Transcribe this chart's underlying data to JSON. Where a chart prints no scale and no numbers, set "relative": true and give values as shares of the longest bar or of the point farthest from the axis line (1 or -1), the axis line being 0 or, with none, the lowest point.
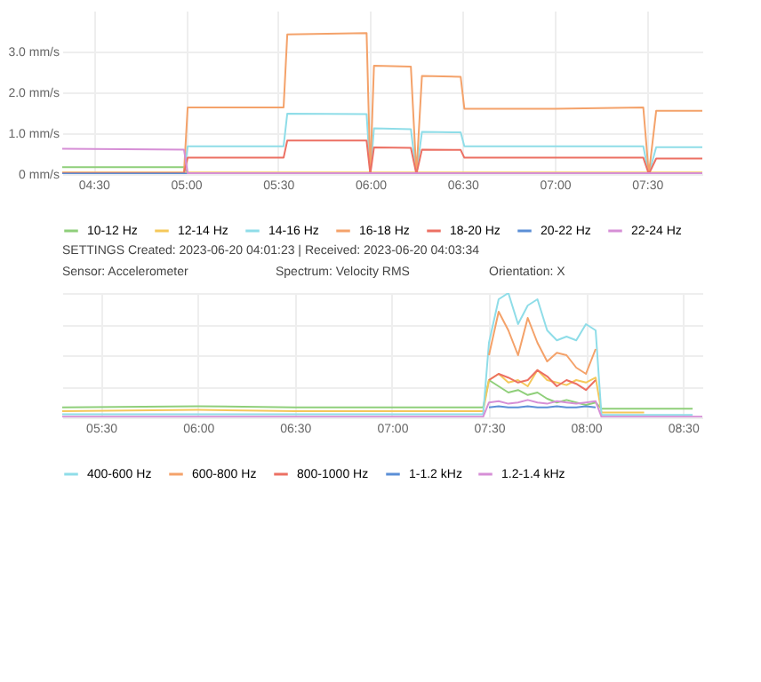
{
  "chart_data": [
    {
      "type": "line",
      "xlabel": null,
      "ylabel": null,
      "x": [
        4.33,
        4.99,
        5.01,
        5.53,
        5.55,
        5.98,
        6.0,
        6.02,
        6.22,
        6.25,
        6.28,
        6.49,
        6.51,
        7.0,
        7.48,
        7.51,
        7.55,
        7.8
      ],
      "xlim": [
        4.33,
        7.8
      ],
      "xticks": [
        {
          "value": 4.5,
          "label": "04:30"
        },
        {
          "value": 5.0,
          "label": "05:00"
        },
        {
          "value": 5.5,
          "label": "05:30"
        },
        {
          "value": 6.0,
          "label": "06:00"
        },
        {
          "value": 6.5,
          "label": "06:30"
        },
        {
          "value": 7.0,
          "label": "07:00"
        },
        {
          "value": 7.5,
          "label": "07:30"
        }
      ],
      "ylim": [
        0,
        4
      ],
      "yticks": [
        {
          "value": 0,
          "label": "0 mm/s"
        },
        {
          "value": 1,
          "label": "1.0 mm/s"
        },
        {
          "value": 2,
          "label": "2.0 mm/s"
        },
        {
          "value": 3,
          "label": "3.0 mm/s"
        }
      ],
      "grid": true,
      "legend": "bottom",
      "series": [
        {
          "name": "10-12 Hz",
          "color": "#8fcf7a",
          "values": [
            0.17,
            0.17,
            0.03,
            null,
            null,
            null,
            null,
            null,
            null,
            null,
            null,
            null,
            null,
            null,
            null,
            null,
            null,
            null
          ]
        },
        {
          "name": "12-14 Hz",
          "color": "#f5c85a",
          "values": [
            0.04,
            0.04,
            0.04,
            0.04,
            0.04,
            0.04,
            0.04,
            0.04,
            0.04,
            0.04,
            0.04,
            0.04,
            0.04,
            0.04,
            0.04,
            0.04,
            0.04,
            0.04
          ]
        },
        {
          "name": "14-16 Hz",
          "color": "#8fdde8",
          "values": [
            0.02,
            0.02,
            0.68,
            0.68,
            1.48,
            1.47,
            0,
            1.12,
            1.1,
            0,
            1.03,
            1.02,
            0.68,
            0.68,
            0.68,
            0,
            0.66,
            0.66
          ]
        },
        {
          "name": "16-18 Hz",
          "color": "#f4a26a",
          "values": [
            0.03,
            0.03,
            1.63,
            1.63,
            3.42,
            3.45,
            0,
            2.65,
            2.63,
            0,
            2.4,
            2.38,
            1.6,
            1.6,
            1.63,
            0,
            1.55,
            1.55
          ]
        },
        {
          "name": "18-20 Hz",
          "color": "#ec7063",
          "values": [
            0.02,
            0.02,
            0.4,
            0.4,
            0.82,
            0.82,
            0,
            0.65,
            0.64,
            0,
            0.6,
            0.59,
            0.4,
            0.4,
            0.4,
            0,
            0.38,
            0.38
          ]
        },
        {
          "name": "20-22 Hz",
          "color": "#5b8fd6",
          "values": [
            0.01,
            0.01,
            0.01,
            null,
            null,
            null,
            null,
            null,
            null,
            null,
            null,
            null,
            null,
            null,
            null,
            null,
            null,
            null
          ]
        },
        {
          "name": "22-24 Hz",
          "color": "#d68fd6",
          "values": [
            0.62,
            0.6,
            0.02,
            0.02,
            0.02,
            0.02,
            0.02,
            0.02,
            0.02,
            0.02,
            0.02,
            0.02,
            0.02,
            0.02,
            0.02,
            0.02,
            0.02,
            0.02
          ]
        }
      ],
      "annotations": [
        "SETTINGS  Created: 2023-06-20 04:01:23 | Received: 2023-06-20 04:03:34",
        "Sensor: Accelerometer",
        "Spectrum: Velocity RMS",
        "Orientation: X"
      ]
    },
    {
      "type": "line",
      "relative": true,
      "x": [
        5.3,
        6.0,
        6.5,
        7.0,
        7.47,
        7.5,
        7.55,
        7.6,
        7.65,
        7.7,
        7.75,
        7.8,
        7.85,
        7.9,
        7.95,
        8.0,
        8.05,
        8.08,
        8.3,
        8.55,
        8.6
      ],
      "xlim": [
        5.3,
        8.6
      ],
      "xticks": [
        {
          "value": 5.5,
          "label": "05:30"
        },
        {
          "value": 6.0,
          "label": "06:00"
        },
        {
          "value": 6.5,
          "label": "06:30"
        },
        {
          "value": 7.0,
          "label": "07:00"
        },
        {
          "value": 7.5,
          "label": "07:30"
        },
        {
          "value": 8.0,
          "label": "08:00"
        },
        {
          "value": 8.5,
          "label": "08:30"
        }
      ],
      "grid": true,
      "legend": "bottom",
      "series": [
        {
          "color": "#8fcf7a",
          "values": [
            0.08,
            0.09,
            0.08,
            0.08,
            0.08,
            0.3,
            0.25,
            0.2,
            0.22,
            0.18,
            0.2,
            0.15,
            0.12,
            0.14,
            0.12,
            0.1,
            0.12,
            0.07,
            0.07,
            0.07,
            null
          ]
        },
        {
          "color": "#f5c85a",
          "values": [
            0.05,
            0.06,
            0.05,
            0.05,
            0.05,
            0.3,
            0.35,
            0.28,
            0.3,
            0.25,
            0.38,
            0.3,
            0.28,
            0.26,
            0.3,
            0.28,
            0.32,
            0.04,
            0.04,
            null,
            null
          ]
        },
        {
          "name": "400-600 Hz",
          "color": "#8fdde8",
          "values": [
            0.025,
            0.025,
            0.025,
            0.025,
            0.025,
            0.6,
            0.95,
            1.0,
            0.75,
            0.9,
            0.95,
            0.7,
            0.62,
            0.65,
            0.62,
            0.75,
            0.7,
            0.02,
            0.02,
            0.02,
            null
          ]
        },
        {
          "name": "600-800 Hz",
          "color": "#f4a26a",
          "values": [
            null,
            null,
            null,
            null,
            null,
            0.5,
            0.85,
            0.7,
            0.5,
            0.8,
            0.6,
            0.45,
            0.52,
            0.5,
            0.4,
            0.35,
            0.55,
            null,
            null,
            null,
            null
          ]
        },
        {
          "name": "800-1000 Hz",
          "color": "#ec7063",
          "values": [
            null,
            null,
            null,
            null,
            null,
            0.3,
            0.35,
            0.32,
            0.28,
            0.3,
            0.38,
            0.33,
            0.25,
            0.3,
            0.27,
            0.22,
            0.3,
            null,
            null,
            null,
            null
          ]
        },
        {
          "name": "1-1.2 kHz",
          "color": "#5b8fd6",
          "values": [
            null,
            null,
            null,
            null,
            null,
            0.08,
            0.09,
            0.08,
            0.08,
            0.09,
            0.08,
            0.08,
            0.09,
            0.08,
            0.08,
            0.09,
            0.08,
            null,
            null,
            null,
            null
          ]
        },
        {
          "name": "1.2-1.4 kHz",
          "color": "#d68fd6",
          "values": [
            0.005,
            0.005,
            0.005,
            0.005,
            0.005,
            0.12,
            0.13,
            0.11,
            0.12,
            0.14,
            0.12,
            0.11,
            0.13,
            0.12,
            0.11,
            0.12,
            0.13,
            0.005,
            0.005,
            0.005,
            0.005
          ]
        }
      ]
    }
  ]
}
